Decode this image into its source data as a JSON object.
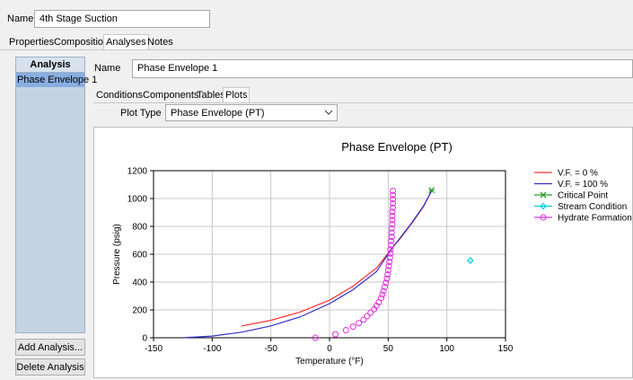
{
  "header": {
    "name_label": "Name",
    "name_value": "4th Stage Suction"
  },
  "tabs": [
    {
      "label": "Properties"
    },
    {
      "label": "Composition"
    },
    {
      "label": "Analyses",
      "active": true
    },
    {
      "label": "Notes"
    }
  ],
  "sidebar": {
    "title": "Analysis",
    "items": [
      {
        "label": "Phase Envelope 1",
        "selected": true
      }
    ],
    "add_button": "Add Analysis...",
    "delete_button": "Delete Analysis"
  },
  "analysis": {
    "name_label": "Name",
    "name_value": "Phase Envelope 1"
  },
  "subtabs": [
    {
      "label": "Conditions"
    },
    {
      "label": "Components"
    },
    {
      "label": "Tables"
    },
    {
      "label": "Plots",
      "active": true
    }
  ],
  "plot_type": {
    "label": "Plot Type",
    "value": "Phase Envelope (PT)"
  },
  "icons": {
    "dropdown": "chevron-down-icon"
  },
  "chart_data": {
    "type": "line",
    "title": "Phase Envelope (PT)",
    "xlabel": "Temperature (°F)",
    "ylabel": "Pressure (psig)",
    "xlim": [
      -150,
      150
    ],
    "ylim": [
      0,
      1200
    ],
    "xticks": [
      -150,
      -100,
      -50,
      0,
      50,
      100,
      150
    ],
    "yticks": [
      0,
      200,
      400,
      600,
      800,
      1000,
      1200
    ],
    "grid": true,
    "legend_position": "right",
    "series": [
      {
        "name": "V.F. = 0 %",
        "color": "#ff3030",
        "marker": "none",
        "points": [
          [
            -75,
            85
          ],
          [
            -50,
            125
          ],
          [
            -25,
            185
          ],
          [
            0,
            270
          ],
          [
            20,
            370
          ],
          [
            40,
            500
          ],
          [
            53,
            640
          ],
          [
            60,
            710
          ],
          [
            70,
            820
          ],
          [
            80,
            940
          ],
          [
            87,
            1055
          ]
        ]
      },
      {
        "name": "V.F. = 100 %",
        "color": "#3030cc",
        "marker": "none",
        "points": [
          [
            -125,
            0
          ],
          [
            -100,
            12
          ],
          [
            -75,
            40
          ],
          [
            -50,
            85
          ],
          [
            -25,
            150
          ],
          [
            0,
            245
          ],
          [
            20,
            345
          ],
          [
            40,
            475
          ],
          [
            53,
            640
          ],
          [
            60,
            715
          ],
          [
            70,
            825
          ],
          [
            80,
            945
          ],
          [
            87,
            1055
          ]
        ]
      },
      {
        "name": "Critical Point",
        "color": "#2e9e2e",
        "marker": "cross",
        "points": [
          [
            87,
            1060
          ]
        ]
      },
      {
        "name": "Stream Condition",
        "color": "#00d0e0",
        "marker": "diamond",
        "points": [
          [
            120,
            555
          ]
        ]
      },
      {
        "name": "Hydrate Formation",
        "color": "#e030e0",
        "marker": "circle",
        "points": [
          [
            -12,
            0
          ],
          [
            5,
            25
          ],
          [
            14,
            55
          ],
          [
            20,
            80
          ],
          [
            25,
            105
          ],
          [
            29,
            130
          ],
          [
            32,
            155
          ],
          [
            35,
            180
          ],
          [
            38,
            205
          ],
          [
            40,
            230
          ],
          [
            42,
            255
          ],
          [
            44,
            285
          ],
          [
            45,
            310
          ],
          [
            46,
            335
          ],
          [
            47,
            365
          ],
          [
            48,
            395
          ],
          [
            49,
            425
          ],
          [
            49.5,
            455
          ],
          [
            50,
            485
          ],
          [
            50.5,
            515
          ],
          [
            51,
            545
          ],
          [
            51.5,
            575
          ],
          [
            52,
            605
          ],
          [
            52,
            635
          ],
          [
            52.5,
            665
          ],
          [
            52.5,
            695
          ],
          [
            53,
            725
          ],
          [
            53,
            755
          ],
          [
            53,
            785
          ],
          [
            53.5,
            815
          ],
          [
            53.5,
            845
          ],
          [
            53.5,
            875
          ],
          [
            53.5,
            905
          ],
          [
            54,
            935
          ],
          [
            54,
            965
          ],
          [
            54,
            995
          ],
          [
            54,
            1025
          ],
          [
            54,
            1055
          ]
        ]
      }
    ]
  }
}
